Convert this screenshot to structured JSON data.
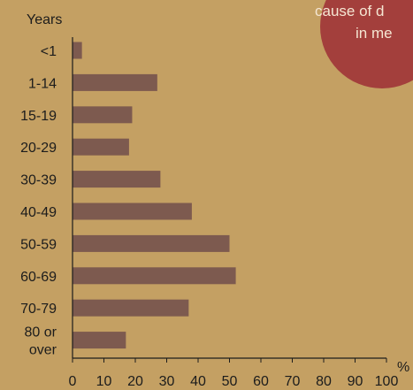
{
  "chart_data": {
    "type": "bar",
    "orientation": "horizontal",
    "ylabel": "Years",
    "xlabel": "%",
    "categories": [
      "<1",
      "1-14",
      "15-19",
      "20-29",
      "30-39",
      "40-49",
      "50-59",
      "60-69",
      "70-79",
      "80 or over"
    ],
    "category_lines": [
      [
        "<1"
      ],
      [
        "1-14"
      ],
      [
        "15-19"
      ],
      [
        "20-29"
      ],
      [
        "30-39"
      ],
      [
        "40-49"
      ],
      [
        "50-59"
      ],
      [
        "60-69"
      ],
      [
        "70-79"
      ],
      [
        "80 or",
        "over"
      ]
    ],
    "values": [
      3,
      27,
      19,
      18,
      28,
      38,
      50,
      52,
      37,
      17
    ],
    "xlim": [
      0,
      100
    ],
    "xticks": [
      0,
      10,
      20,
      30,
      40,
      50,
      60,
      70,
      80,
      90,
      100
    ],
    "grid": false,
    "bar_color": "#7d5a4f",
    "background_color": "#c4a063",
    "annotation": {
      "lines": [
        "cause of d",
        "in me"
      ],
      "color": "#a33f3c"
    }
  }
}
